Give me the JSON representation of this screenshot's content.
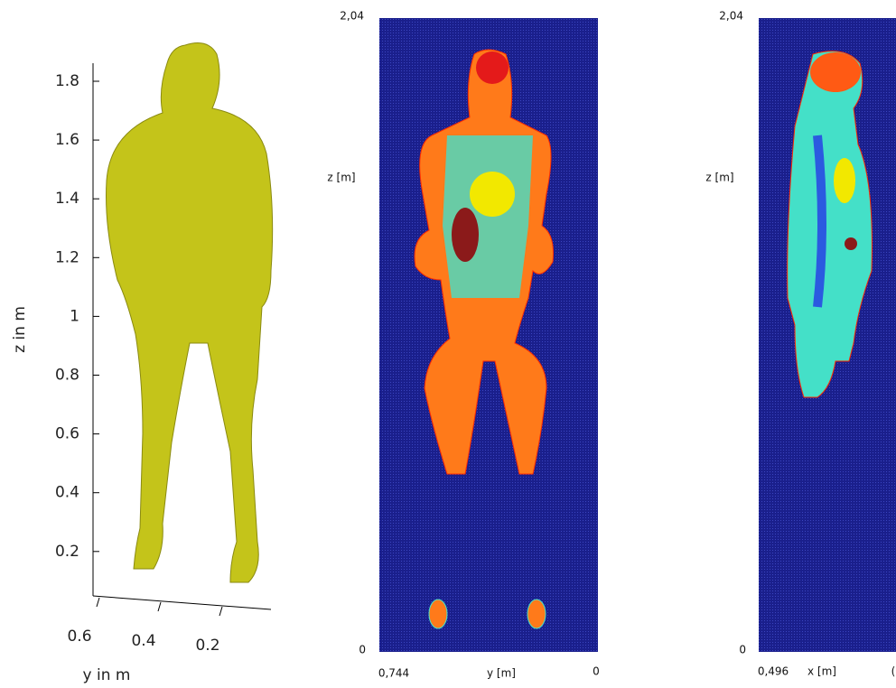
{
  "panels": [
    {
      "axis_title_z": "z in m",
      "axis_title_y": "y in m",
      "z_ticks": [
        "1.8",
        "1.6",
        "1.4",
        "1.2",
        "1",
        "0.8",
        "0.6",
        "0.4",
        "0.2"
      ],
      "y_ticks": [
        "0.6",
        "0.4",
        "0.2"
      ]
    },
    {
      "z_top": "2,04",
      "z_bottom": "0",
      "z_label": "z [m]",
      "x_left": "0,744",
      "x_label": "y [m]",
      "x_right": "0"
    },
    {
      "z_top": "2,04",
      "z_bottom": "0",
      "z_label": "z [m]",
      "x_left": "0,496",
      "x_label": "x [m]",
      "x_right": "("
    }
  ]
}
